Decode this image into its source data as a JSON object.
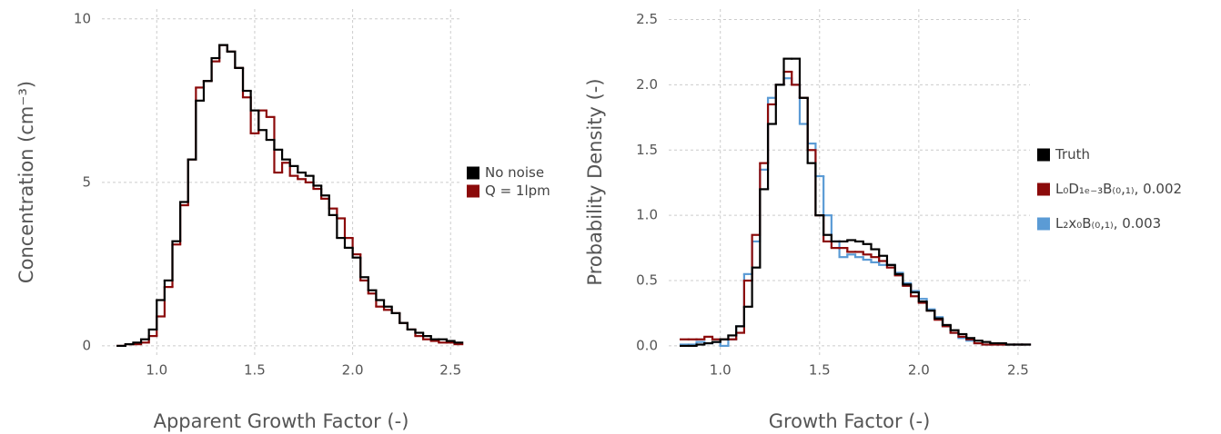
{
  "chart_data": [
    {
      "type": "step-histogram",
      "xlabel": "Apparent Growth Factor (-)",
      "ylabel": "Concentration (cm⁻³)",
      "bins": [
        0.8,
        0.84,
        0.88,
        0.92,
        0.96,
        1.0,
        1.04,
        1.08,
        1.12,
        1.16,
        1.2,
        1.24,
        1.28,
        1.32,
        1.36,
        1.4,
        1.44,
        1.48,
        1.52,
        1.56,
        1.6,
        1.64,
        1.68,
        1.72,
        1.76,
        1.8,
        1.84,
        1.88,
        1.92,
        1.96,
        2.0,
        2.04,
        2.08,
        2.12,
        2.16,
        2.2,
        2.24,
        2.28,
        2.32,
        2.36,
        2.4,
        2.44,
        2.48,
        2.52,
        2.56
      ],
      "series": [
        {
          "name": "No noise",
          "color": "#000000",
          "values": [
            0,
            0.05,
            0.1,
            0.2,
            0.5,
            1.4,
            2.0,
            3.2,
            4.4,
            5.7,
            7.5,
            8.1,
            8.8,
            9.2,
            9.0,
            8.5,
            7.8,
            7.2,
            6.6,
            6.3,
            6.0,
            5.7,
            5.5,
            5.3,
            5.2,
            4.9,
            4.6,
            4.0,
            3.3,
            3.0,
            2.7,
            2.1,
            1.7,
            1.4,
            1.2,
            1.0,
            0.7,
            0.5,
            0.4,
            0.3,
            0.2,
            0.2,
            0.15,
            0.1
          ]
        },
        {
          "name": "Q = 1lpm",
          "color": "#8b0a0a",
          "values": [
            0,
            0.05,
            0.05,
            0.1,
            0.3,
            0.9,
            1.8,
            3.1,
            4.3,
            5.7,
            7.9,
            8.1,
            8.7,
            9.2,
            9.0,
            8.5,
            7.6,
            6.5,
            7.2,
            7.0,
            5.3,
            5.6,
            5.2,
            5.1,
            5.0,
            4.8,
            4.5,
            4.2,
            3.9,
            3.3,
            2.8,
            2.0,
            1.6,
            1.2,
            1.1,
            1.0,
            0.7,
            0.5,
            0.3,
            0.2,
            0.15,
            0.1,
            0.1,
            0.05
          ]
        }
      ],
      "xlim": [
        0.72,
        2.55
      ],
      "ylim": [
        -0.28,
        10.3
      ],
      "xticks": [
        {
          "value": 1,
          "label": "1.0"
        },
        1.5,
        {
          "value": 2,
          "label": "2.0"
        },
        2.5
      ],
      "yticks": [
        0,
        5,
        10
      ],
      "grid": true,
      "legend": "right"
    },
    {
      "type": "step-histogram",
      "xlabel": "Growth Factor (-)",
      "ylabel": "Probability Density (-)",
      "bins": [
        0.8,
        0.84,
        0.88,
        0.92,
        0.96,
        1.0,
        1.04,
        1.08,
        1.12,
        1.16,
        1.2,
        1.24,
        1.28,
        1.32,
        1.36,
        1.4,
        1.44,
        1.48,
        1.52,
        1.56,
        1.6,
        1.64,
        1.68,
        1.72,
        1.76,
        1.8,
        1.84,
        1.88,
        1.92,
        1.96,
        2.0,
        2.04,
        2.08,
        2.12,
        2.16,
        2.2,
        2.24,
        2.28,
        2.32,
        2.36,
        2.4,
        2.44,
        2.48,
        2.52,
        2.56
      ],
      "series": [
        {
          "name": "Truth",
          "color": "#000000",
          "values": [
            0,
            0,
            0.01,
            0.02,
            0.03,
            0.05,
            0.08,
            0.15,
            0.3,
            0.6,
            1.2,
            1.7,
            2.0,
            2.2,
            2.2,
            1.9,
            1.4,
            1.0,
            0.85,
            0.8,
            0.8,
            0.81,
            0.8,
            0.78,
            0.74,
            0.69,
            0.62,
            0.55,
            0.47,
            0.41,
            0.34,
            0.27,
            0.21,
            0.16,
            0.12,
            0.09,
            0.06,
            0.04,
            0.03,
            0.02,
            0.02,
            0.01,
            0.01,
            0.01
          ]
        },
        {
          "name": "L₀D₁ₑ₋₃B₍₀,₁₎, 0.002",
          "color": "#8b0a0a",
          "values": [
            0.05,
            0.05,
            0.05,
            0.07,
            0.05,
            0.05,
            0.05,
            0.1,
            0.5,
            0.85,
            1.4,
            1.85,
            2.0,
            2.1,
            2.0,
            1.9,
            1.5,
            1.0,
            0.8,
            0.75,
            0.75,
            0.72,
            0.72,
            0.7,
            0.68,
            0.65,
            0.6,
            0.54,
            0.46,
            0.38,
            0.33,
            0.27,
            0.2,
            0.15,
            0.1,
            0.07,
            0.05,
            0.02,
            0.01,
            0.01,
            0.01,
            0.01,
            0.01,
            0.01
          ]
        },
        {
          "name": "L₂x₀B₍₀,₁₎, 0.003",
          "color": "#5b9bd5",
          "values": [
            0.01,
            0.01,
            0.03,
            0.02,
            0.03,
            0,
            0.05,
            0.15,
            0.55,
            0.8,
            1.35,
            1.9,
            2.0,
            2.05,
            2.0,
            1.7,
            1.55,
            1.3,
            1.0,
            0.8,
            0.68,
            0.7,
            0.68,
            0.66,
            0.64,
            0.62,
            0.62,
            0.56,
            0.48,
            0.42,
            0.36,
            0.28,
            0.22,
            0.15,
            0.1,
            0.06,
            0.04,
            0.02,
            0.01,
            0.01,
            0.01,
            0.01,
            0.01,
            0.01
          ]
        }
      ],
      "xlim": [
        0.74,
        2.56
      ],
      "ylim": [
        -0.07,
        2.58
      ],
      "xticks": [
        {
          "value": 1,
          "label": "1.0"
        },
        1.5,
        {
          "value": 2,
          "label": "2.0"
        },
        2.5
      ],
      "yticks": [
        {
          "value": 0,
          "label": "0.0"
        },
        0.5,
        {
          "value": 1,
          "label": "1.0"
        },
        1.5,
        {
          "value": 2,
          "label": "2.0"
        },
        2.5
      ],
      "grid": true,
      "legend": "right"
    }
  ]
}
